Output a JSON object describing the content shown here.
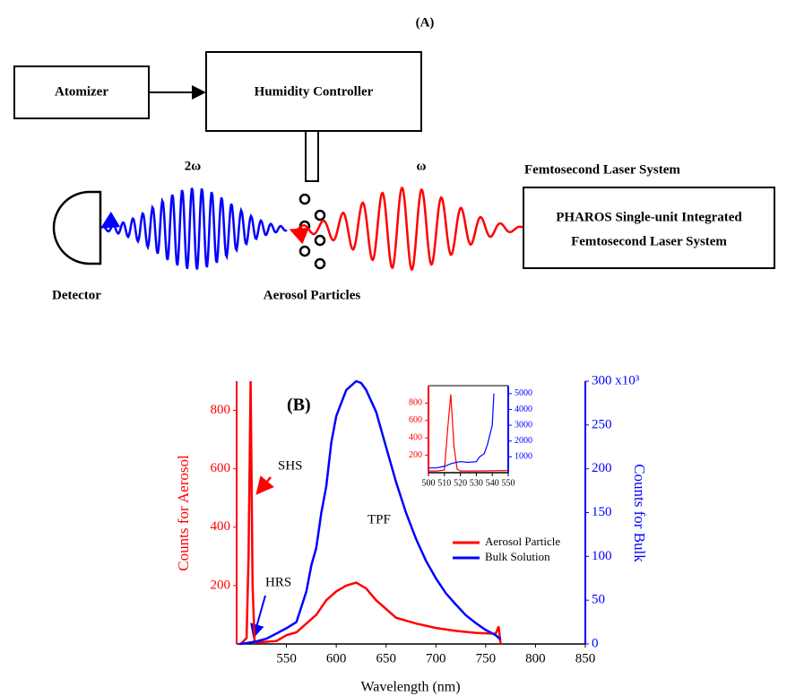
{
  "diagram": {
    "title": "(A)",
    "atomizer": "Atomizer",
    "humidity_controller": "Humidity Controller",
    "second_harmonic": "2ω",
    "fundamental": "ω",
    "laser_system_label": "Femtosecond Laser System",
    "laser_box_line1": "PHAROS Single-unit Integrated",
    "laser_box_line2": "Femtosecond Laser System",
    "detector": "Detector",
    "particles": "Aerosol Particles"
  },
  "chart_data": [
    {
      "type": "line",
      "title": "(B)",
      "x_label": "Wavelength (nm)",
      "y_label": "Counts for Aerosol",
      "y2_label": "Counts for Bulk",
      "xlim": [
        500,
        850
      ],
      "xticks": [
        550,
        600,
        650,
        700,
        750,
        800,
        850
      ],
      "ylim": [
        0,
        900
      ],
      "yticks": [
        200,
        400,
        600,
        800
      ],
      "y2lim": [
        0,
        300
      ],
      "y2ticks": [
        0,
        50,
        100,
        150,
        200,
        250,
        {
          "value": 300,
          "label": "300 x10³"
        }
      ],
      "annotations": [
        "SHS",
        "HRS",
        "TPF"
      ],
      "series": [
        {
          "name": "Aerosol Particle",
          "color": "#ff0000",
          "x": [
            504,
            510,
            512,
            514,
            516,
            518,
            520,
            540,
            550,
            560,
            570,
            580,
            590,
            600,
            610,
            620,
            630,
            640,
            650,
            660,
            680,
            700,
            720,
            740,
            760,
            763,
            765
          ],
          "values": [
            0,
            20,
            300,
            900,
            200,
            10,
            5,
            10,
            30,
            40,
            70,
            100,
            150,
            180,
            200,
            210,
            190,
            150,
            120,
            90,
            70,
            55,
            45,
            38,
            35,
            60,
            0
          ]
        },
        {
          "name": "Bulk Solution",
          "color": "#0000ff",
          "axis": "y2",
          "x": [
            503,
            510,
            520,
            530,
            540,
            550,
            560,
            570,
            575,
            580,
            585,
            590,
            595,
            600,
            610,
            620,
            625,
            630,
            640,
            650,
            660,
            670,
            680,
            690,
            700,
            710,
            720,
            730,
            740,
            750,
            760,
            765
          ],
          "values": [
            0,
            1,
            3,
            6,
            12,
            18,
            25,
            60,
            90,
            110,
            150,
            180,
            230,
            260,
            290,
            300,
            298,
            290,
            265,
            225,
            185,
            150,
            120,
            95,
            75,
            58,
            45,
            33,
            24,
            16,
            10,
            5
          ]
        }
      ]
    },
    {
      "type": "line",
      "xlim": [
        500,
        550
      ],
      "xticks": [
        500,
        510,
        520,
        530,
        540,
        550
      ],
      "ylim": [
        0,
        1000
      ],
      "yticks": [
        200,
        400,
        600,
        800
      ],
      "y2lim": [
        0,
        5500
      ],
      "y2ticks": [
        1000,
        2000,
        3000,
        4000,
        5000
      ],
      "series": [
        {
          "color": "#ff0000",
          "x": [
            500,
            505,
            510,
            512,
            514,
            516,
            518,
            520,
            530,
            550
          ],
          "values": [
            20,
            20,
            30,
            500,
            900,
            300,
            40,
            20,
            20,
            25
          ]
        },
        {
          "color": "#0000ff",
          "axis": "y2",
          "x": [
            500,
            505,
            510,
            515,
            520,
            525,
            530,
            532,
            535,
            537,
            540,
            541
          ],
          "values": [
            300,
            300,
            400,
            600,
            700,
            650,
            700,
            1000,
            1200,
            1800,
            3000,
            5000
          ]
        }
      ]
    }
  ]
}
